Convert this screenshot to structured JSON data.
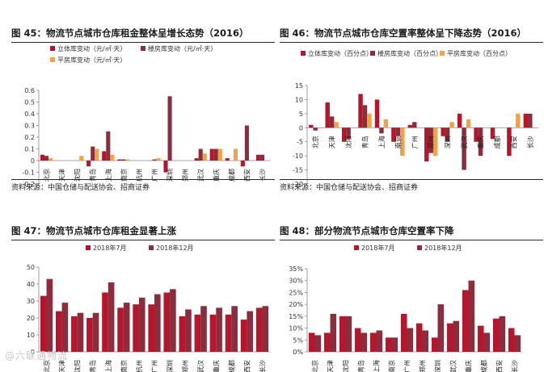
{
  "colors": {
    "s1": "#b5162b",
    "s2": "#8a2d3c",
    "s3": "#f0a14c"
  },
  "watermark": "@六联通物流",
  "panels": {
    "p45": {
      "title": "图 45：物流节点城市仓库租金整体呈增长态势（2016）",
      "source": "资料来源：中国仓储与配送协会、招商证券"
    },
    "p46": {
      "title": "图 46：物流节点城市仓库空置率整体呈下降态势（2016）",
      "source": "资料来源：中国仓储与配送协会、招商证券"
    },
    "p47": {
      "title": "图 47：物流节点城市仓库租金显著上涨"
    },
    "p48": {
      "title": "图 48：部分物流节点城市仓库空置率下降"
    }
  },
  "chart_data": [
    {
      "id": "c45",
      "type": "bar",
      "categories": [
        "北京",
        "天津",
        "沈阳",
        "青岛",
        "上海",
        "南京",
        "杭州",
        "广州",
        "深圳",
        "郑州",
        "武汉",
        "重庆",
        "成都",
        "西安",
        "长沙"
      ],
      "series": [
        {
          "name": "立体库变动（元/㎡·天）",
          "color": "#b5162b",
          "values": [
            0.05,
            0,
            0,
            -0.05,
            0.08,
            0.01,
            0,
            0,
            -0.1,
            0,
            0.02,
            0.1,
            0.02,
            -0.05,
            0.05
          ]
        },
        {
          "name": "楼房库变动（元/㎡·天）",
          "color": "#8a2d3c",
          "values": [
            0.04,
            0,
            0,
            0.12,
            0.25,
            0.01,
            0,
            0.01,
            0.55,
            0,
            0.1,
            0.1,
            0,
            0.3,
            0.05
          ]
        },
        {
          "name": "平房库变动（元/㎡·天）",
          "color": "#f0a14c",
          "values": [
            0.02,
            0,
            0.04,
            0.1,
            0.05,
            0.01,
            0,
            0.02,
            0,
            0,
            0.06,
            0.1,
            0.1,
            0,
            0
          ]
        }
      ],
      "ylim": [
        -0.2,
        0.6
      ],
      "yticks": [
        "-0.2",
        "-0.1",
        "0",
        "0.1",
        "0.2",
        "0.3",
        "0.4",
        "0.5",
        "0.6"
      ],
      "legend": "top-left",
      "grid": false
    },
    {
      "id": "c46",
      "type": "bar",
      "categories": [
        "北京",
        "天津",
        "沈阳",
        "青岛",
        "上海",
        "南京",
        "广州",
        "郑州",
        "深圳",
        "武汉",
        "重庆",
        "成都",
        "西安",
        "长沙"
      ],
      "series": [
        {
          "name": "立体库变动（百分点）",
          "color": "#b5162b",
          "values": [
            1,
            9,
            -5,
            12,
            10,
            -5,
            1,
            -12,
            -3,
            5,
            -5,
            -4,
            -10,
            5
          ]
        },
        {
          "name": "楼房库变动（百分点）",
          "color": "#8a2d3c",
          "values": [
            -1,
            4,
            -4,
            8,
            -2,
            -3,
            2,
            -9,
            -5,
            -15,
            -10,
            0,
            0,
            5
          ]
        },
        {
          "name": "平房库变动（百分点）",
          "color": "#f0a14c",
          "values": [
            0,
            2,
            0,
            5,
            3,
            -10,
            0,
            -10,
            2,
            3,
            0,
            0,
            5,
            0
          ]
        }
      ],
      "ylim": [
        -20,
        15
      ],
      "yticks": [
        "-20",
        "-15",
        "-10",
        "-5",
        "0",
        "5",
        "10",
        "15"
      ],
      "legend": "top-left",
      "grid": false
    },
    {
      "id": "c47",
      "type": "bar",
      "categories": [
        "北京",
        "天津",
        "沈阳",
        "青岛",
        "上海",
        "南京",
        "杭州",
        "广州",
        "深圳",
        "郑州",
        "武汉",
        "重庆",
        "成都",
        "西安",
        "长沙"
      ],
      "series": [
        {
          "name": "2018年7月",
          "color": "#b5162b",
          "values": [
            33,
            24,
            21,
            20,
            35,
            26,
            28,
            28,
            35,
            21,
            22,
            22,
            22,
            19,
            26
          ]
        },
        {
          "name": "2018年12月",
          "color": "#8a2d3c",
          "values": [
            43,
            29,
            23,
            23,
            41,
            29,
            32,
            34,
            37,
            25,
            27,
            26,
            27,
            24,
            27
          ]
        }
      ],
      "ylim": [
        0,
        50
      ],
      "yticks": [
        "0",
        "10",
        "20",
        "30",
        "40",
        "50"
      ],
      "legend": "top-center",
      "grid": false
    },
    {
      "id": "c48",
      "type": "bar",
      "categories": [
        "北京",
        "天津",
        "沈阳",
        "青岛",
        "上海",
        "南京",
        "广州",
        "郑州",
        "深圳",
        "武汉",
        "重庆",
        "成都",
        "西安",
        "长沙"
      ],
      "series": [
        {
          "name": "2018年7月",
          "color": "#b5162b",
          "values": [
            8,
            8,
            15,
            10,
            8,
            6,
            16,
            12,
            6,
            12,
            26,
            11,
            14,
            10
          ]
        },
        {
          "name": "2018年12月",
          "color": "#8a2d3c",
          "values": [
            7,
            16,
            15,
            8,
            9,
            6,
            10,
            9,
            20,
            13,
            30,
            8,
            15,
            7
          ]
        }
      ],
      "ylim": [
        0,
        35
      ],
      "yticks": [
        "0%",
        "5%",
        "10%",
        "15%",
        "20%",
        "25%",
        "30%",
        "35%"
      ],
      "legend": "top-center",
      "grid": false
    }
  ]
}
